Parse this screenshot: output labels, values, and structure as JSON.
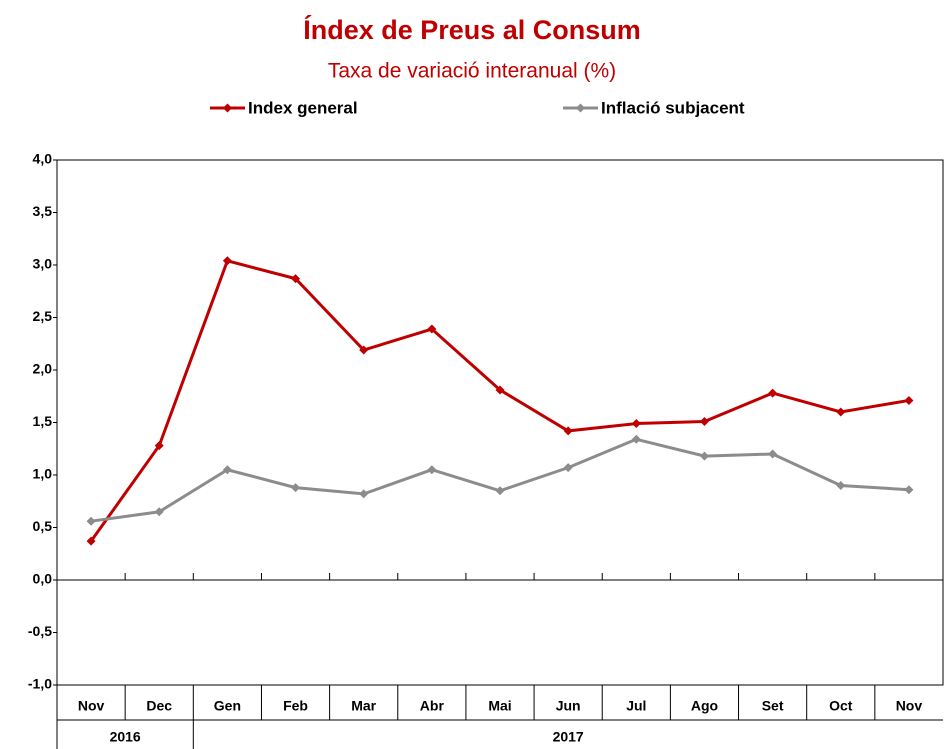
{
  "chart_data": {
    "type": "line",
    "title": "Índex de Preus al Consum",
    "subtitle": "Taxa de variació interanual (%)",
    "categories": [
      "Nov",
      "Dec",
      "Gen",
      "Feb",
      "Mar",
      "Abr",
      "Mai",
      "Jun",
      "Jul",
      "Ago",
      "Set",
      "Oct",
      "Nov"
    ],
    "year_labels": [
      "2016",
      null,
      "2017",
      null,
      null,
      null,
      null,
      null,
      null,
      null,
      null,
      null,
      null
    ],
    "series": [
      {
        "name": "Index general",
        "color": "#c00000",
        "values": [
          0.37,
          1.28,
          3.04,
          2.87,
          2.19,
          2.39,
          1.81,
          1.42,
          1.49,
          1.51,
          1.78,
          1.6,
          1.71
        ]
      },
      {
        "name": "Inflació subjacent",
        "color": "#8c8c8c",
        "values": [
          0.56,
          0.65,
          1.05,
          0.88,
          0.82,
          1.05,
          0.85,
          1.07,
          1.34,
          1.18,
          1.2,
          0.9,
          0.86
        ]
      }
    ],
    "ylim": [
      -1,
      4
    ],
    "yticks": [
      {
        "value": -1,
        "label": "-1,0"
      },
      {
        "value": -0.5,
        "label": "-0,5"
      },
      {
        "value": 0,
        "label": "0,0"
      },
      {
        "value": 0.5,
        "label": "0,5"
      },
      {
        "value": 1,
        "label": "1,0"
      },
      {
        "value": 1.5,
        "label": "1,5"
      },
      {
        "value": 2,
        "label": "2,0"
      },
      {
        "value": 2.5,
        "label": "2,5"
      },
      {
        "value": 3,
        "label": "3,0"
      },
      {
        "value": 3.5,
        "label": "3,5"
      },
      {
        "value": 4,
        "label": "4,0"
      }
    ],
    "grid": false,
    "legend": "top"
  }
}
